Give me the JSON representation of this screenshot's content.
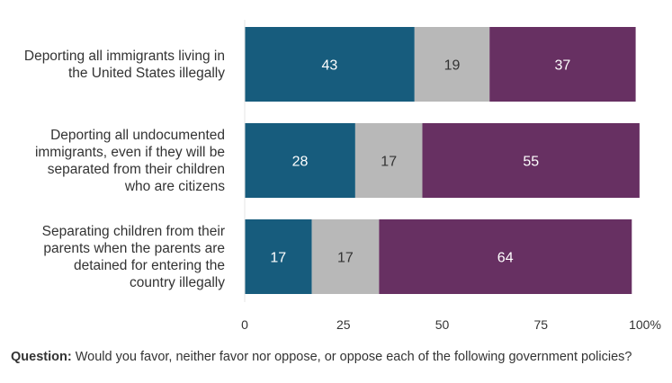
{
  "chart_data": {
    "type": "bar",
    "orientation": "horizontal",
    "stacked": true,
    "categories": [
      [
        "Deporting all immigrants living in",
        "the United States illegally"
      ],
      [
        "Deporting all undocumented",
        "immigrants, even if they will be",
        "separated from their children",
        "who are citizens"
      ],
      [
        "Separating children from their",
        "parents when the parents are",
        "detained for entering the",
        "country illegally"
      ]
    ],
    "series": [
      {
        "values": [
          43,
          28,
          17
        ],
        "color": "#175c7d"
      },
      {
        "values": [
          19,
          17,
          17
        ],
        "color": "#b8b8b8"
      },
      {
        "values": [
          37,
          55,
          64
        ],
        "color": "#673062"
      }
    ],
    "xticks": [
      "0",
      "25",
      "50",
      "75",
      "100%"
    ],
    "xlim": [
      0,
      100
    ],
    "grid": false
  },
  "question": {
    "label": "Question:",
    "text": " Would you favor, neither favor nor oppose, or oppose each of the following government policies?"
  }
}
